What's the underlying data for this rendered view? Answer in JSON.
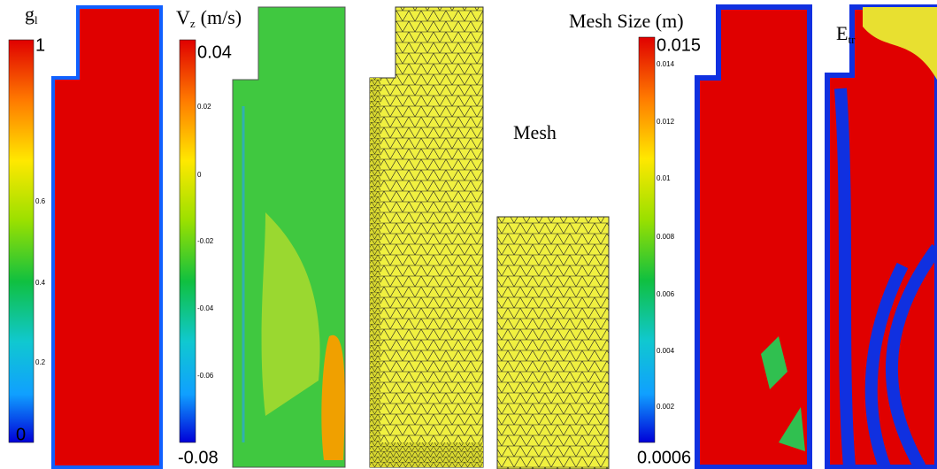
{
  "panels": [
    {
      "title": {
        "main": "g",
        "sub": "l"
      },
      "ticks": [
        "1",
        "0.6",
        "0.4",
        "0.2",
        "0"
      ]
    },
    {
      "title": {
        "main": "V",
        "sub": "z",
        "unit": "(m/s)"
      },
      "ticks": [
        "0.04",
        "0.02",
        "0",
        "-0.02",
        "-0.04",
        "-0.06",
        "-0.08"
      ]
    },
    {
      "title": {
        "main": "Mesh"
      }
    },
    {
      "title": {
        "main": "Mesh Size (m)"
      },
      "ticks": [
        "0.015",
        "0.014",
        "0.012",
        "0.01",
        "0.008",
        "0.006",
        "0.004",
        "0.002",
        "0.0006"
      ]
    },
    {
      "title": {
        "main": "E",
        "sub": "tr"
      }
    }
  ]
}
